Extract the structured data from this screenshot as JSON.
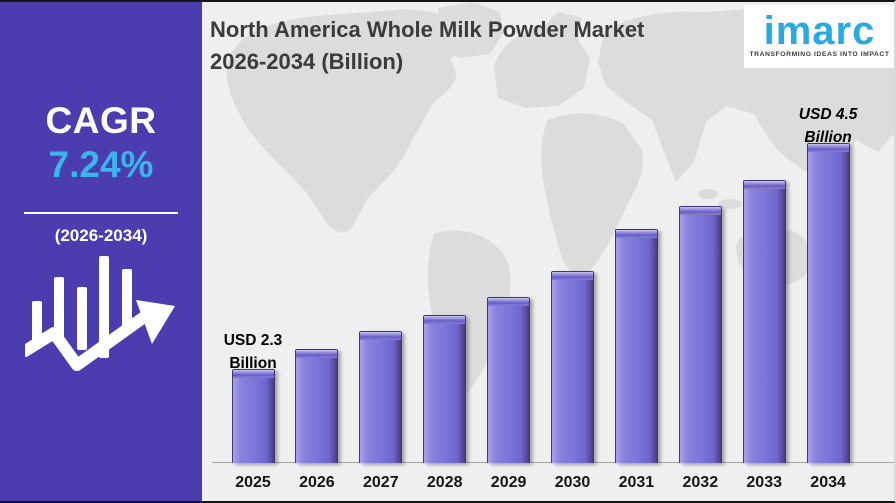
{
  "sidebar": {
    "cagr_label": "CAGR",
    "cagr_value": "7.24%",
    "period": "(2026-2034)",
    "accent_color": "#3ab7ea",
    "background_color": "#4b3db0",
    "icons": {
      "growth_icon": "bar-chart-growth-arrow-icon"
    }
  },
  "header": {
    "title_line1": "North America Whole Milk Powder Market",
    "title_line2": "2026-2034 (Billion)"
  },
  "logo": {
    "word": "imarc",
    "tagline": "TRANSFORMING IDEAS INTO IMPACT",
    "brand_color": "#29a9e2"
  },
  "chart_data": {
    "type": "bar",
    "title": "North America Whole Milk Powder Market 2026-2034 (Billion)",
    "xlabel": "",
    "ylabel": "",
    "categories": [
      "2025",
      "2026",
      "2027",
      "2028",
      "2029",
      "2030",
      "2031",
      "2032",
      "2033",
      "2034"
    ],
    "values": [
      2.3,
      2.49,
      2.67,
      2.83,
      3.0,
      3.25,
      3.66,
      3.89,
      4.14,
      4.5
    ],
    "values_estimated_from_bar_heights": true,
    "labeled_points": [
      {
        "category": "2025",
        "value": 2.3,
        "label_lines": [
          "USD 2.3",
          "Billion"
        ],
        "italic": false
      },
      {
        "category": "2034",
        "value": 4.5,
        "label_lines": [
          "USD 4.5",
          "Billion"
        ],
        "italic": true
      }
    ],
    "unit": "USD Billion",
    "bar_color": "#7d76d8",
    "axis_visible": false,
    "gridlines": false,
    "legend": "none",
    "background_watermark": "world-map"
  }
}
